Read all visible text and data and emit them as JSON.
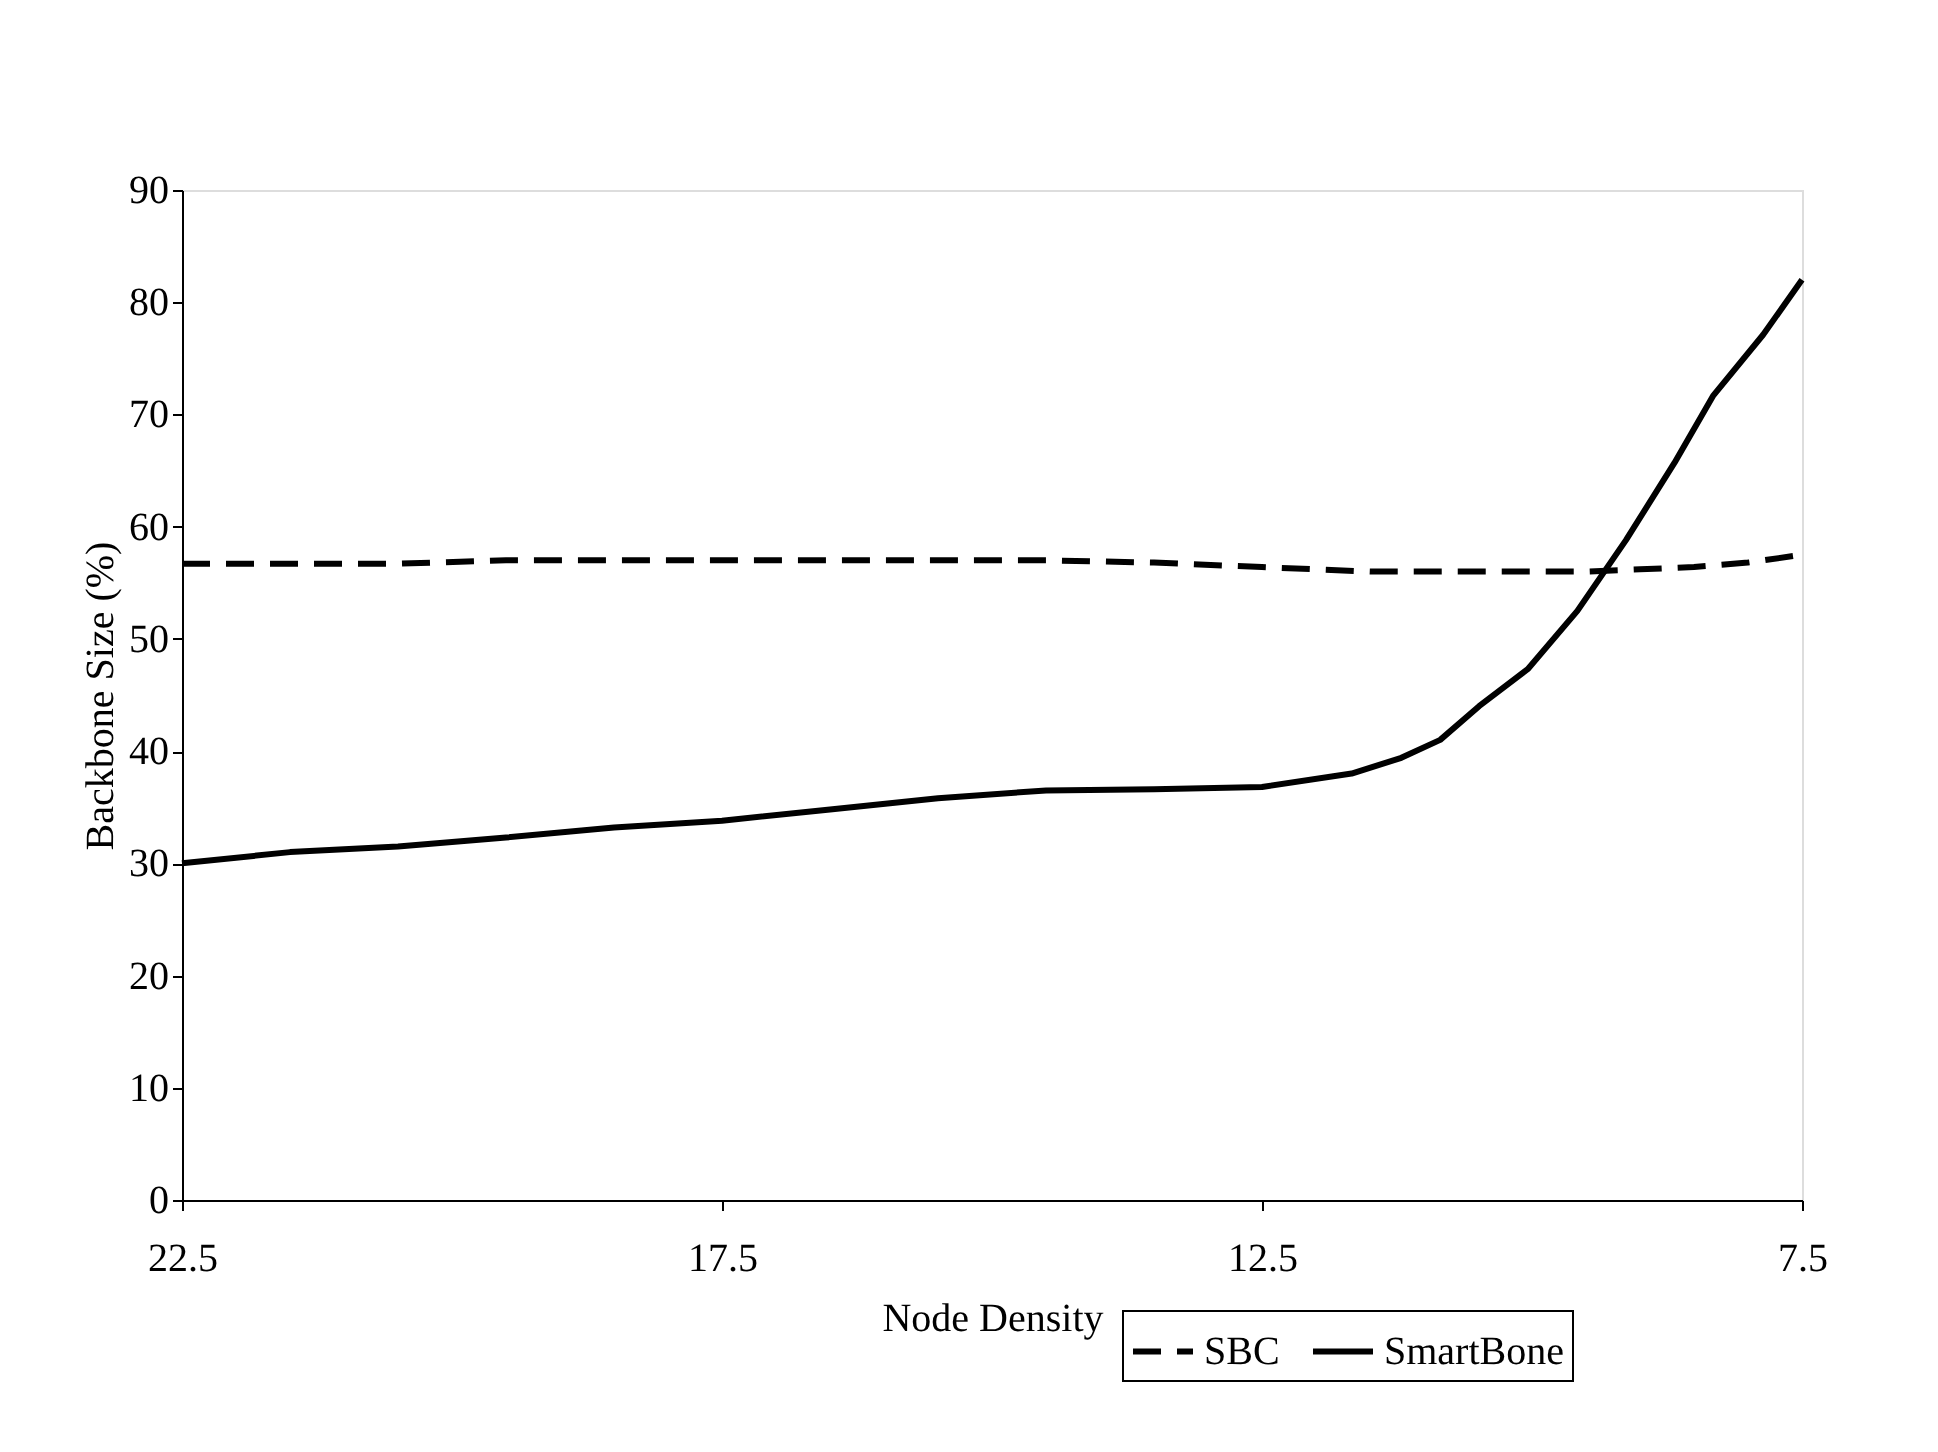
{
  "chart_data": {
    "type": "line",
    "xlabel": "Node Density",
    "ylabel": "Backbone Size (%)",
    "xlim": [
      22.5,
      7.5
    ],
    "xticks": [
      {
        "value": 22.5,
        "label": "22.5"
      },
      {
        "value": 17.5,
        "label": "17.5"
      },
      {
        "value": 12.5,
        "label": "12.5"
      },
      {
        "value": 7.5,
        "label": "7.5"
      }
    ],
    "ylim": [
      0,
      90
    ],
    "yticks": [
      0,
      10,
      20,
      30,
      40,
      50,
      60,
      70,
      80,
      90
    ],
    "grid": false,
    "legend": "bottom right",
    "marker": "none",
    "series": [
      {
        "name": "SBC",
        "color": "#000000",
        "line_style": "dashed",
        "x": [
          22.5,
          21.5,
          20.5,
          19.5,
          18.5,
          17.5,
          16.5,
          15.5,
          14.5,
          13.5,
          12.5,
          11.5,
          10.5,
          9.5,
          9.0,
          8.5,
          8.0,
          7.5
        ],
        "values": [
          56.7,
          56.7,
          56.7,
          57,
          57,
          57,
          57,
          57,
          57,
          56.8,
          56.4,
          56,
          56,
          56,
          56.2,
          56.4,
          56.8,
          57.5
        ]
      },
      {
        "name": "SmartBone",
        "color": "#000000",
        "line_style": "solid",
        "x": [
          22.5,
          21.5,
          20.5,
          19.5,
          18.5,
          17.5,
          16.5,
          15.5,
          14.5,
          13.5,
          12.5,
          11.67,
          11.21,
          10.85,
          10.49,
          10.04,
          9.58,
          9.13,
          8.68,
          8.32,
          7.86,
          7.5
        ],
        "values": [
          30,
          31,
          31.5,
          32.3,
          33.2,
          33.8,
          34.8,
          35.8,
          36.5,
          36.6,
          36.8,
          38,
          39.4,
          41,
          44,
          47.3,
          52.5,
          58.8,
          65.7,
          71.7,
          77.1,
          82
        ]
      }
    ]
  }
}
